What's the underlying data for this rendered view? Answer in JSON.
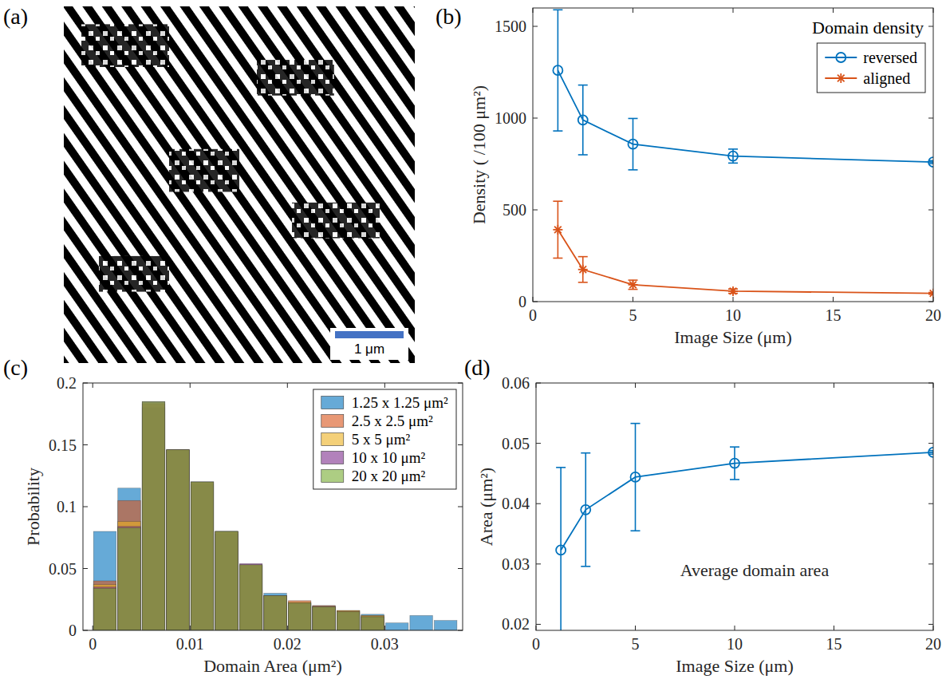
{
  "chart_data": [
    {
      "type": "image",
      "panel_label": "(a)",
      "scale_bar": "1 μm"
    },
    {
      "type": "line",
      "panel_label": "(b)",
      "x_label": "Image Size (μm)",
      "y_label": "Density ( /100 μm²)",
      "x": [
        1.25,
        2.5,
        5,
        10,
        20
      ],
      "series": [
        {
          "name": "reversed",
          "color": "#0072bd",
          "marker": "o",
          "values": [
            1260,
            990,
            858,
            793,
            760
          ],
          "errors": [
            330,
            190,
            140,
            38,
            8
          ]
        },
        {
          "name": "aligned",
          "color": "#d95319",
          "marker": "*",
          "values": [
            392,
            175,
            92,
            57,
            45
          ],
          "errors": [
            155,
            70,
            25,
            12,
            5
          ]
        }
      ],
      "xlim": [
        0,
        20
      ],
      "xticks": [
        0,
        5,
        10,
        15,
        20
      ],
      "ylim": [
        0,
        1600
      ],
      "yticks": [
        0,
        500,
        1000,
        1500
      ],
      "legend": "northeast",
      "legend_title": "Domain density"
    },
    {
      "type": "histogram",
      "panel_label": "(c)",
      "x_label": "Domain Area (μm²)",
      "y_label": "Probability",
      "bins": [
        0,
        0.0025,
        0.005,
        0.0075,
        0.01,
        0.0125,
        0.015,
        0.0175,
        0.02,
        0.0225,
        0.025,
        0.0275,
        0.03,
        0.0325,
        0.035,
        0.0375
      ],
      "series": [
        {
          "name": "1.25 x 1.25 μm²",
          "color": "#0072bd",
          "values": [
            0.08,
            0.115,
            0.18,
            0.146,
            0.118,
            0.078,
            0.052,
            0.03,
            0.022,
            0.02,
            0.016,
            0.013,
            0.006,
            0.012,
            0.008
          ]
        },
        {
          "name": "2.5 x 2.5 μm²",
          "color": "#d95319",
          "values": [
            0.04,
            0.105,
            0.183,
            0.146,
            0.12,
            0.08,
            0.053,
            0.028,
            0.024,
            0.02,
            0.016,
            0.012,
            0,
            0,
            0
          ]
        },
        {
          "name": "5 x 5 μm²",
          "color": "#edb120",
          "values": [
            0.037,
            0.088,
            0.184,
            0.146,
            0.12,
            0.08,
            0.053,
            0.028,
            0.023,
            0.019,
            0.016,
            0.012,
            0,
            0,
            0
          ]
        },
        {
          "name": "10 x 10 μm²",
          "color": "#7e2f8e",
          "values": [
            0.035,
            0.084,
            0.185,
            0.146,
            0.12,
            0.08,
            0.054,
            0.028,
            0.022,
            0.019,
            0.015,
            0.011,
            0,
            0,
            0
          ]
        },
        {
          "name": "20 x 20 μm²",
          "color": "#77ac30",
          "values": [
            0.034,
            0.083,
            0.185,
            0.146,
            0.12,
            0.08,
            0.053,
            0.028,
            0.022,
            0.019,
            0.015,
            0.011,
            0,
            0,
            0
          ]
        }
      ],
      "xlim": [
        -0.001,
        0.038
      ],
      "xticks": [
        0,
        0.01,
        0.02,
        0.03
      ],
      "ylim": [
        0,
        0.2
      ],
      "yticks": [
        0,
        0.05,
        0.1,
        0.15,
        0.2
      ],
      "legend": "northeast"
    },
    {
      "type": "line",
      "panel_label": "(d)",
      "x_label": "Image Size (μm)",
      "y_label": "Area (μm²)",
      "annotations": [
        "Average domain area"
      ],
      "x": [
        1.25,
        2.5,
        5,
        10,
        20
      ],
      "series": [
        {
          "color": "#0072bd",
          "marker": "o",
          "values": [
            0.0323,
            0.039,
            0.0444,
            0.0467,
            0.0485
          ],
          "errors": [
            0.0137,
            0.0094,
            0.0089,
            0.0027,
            0.0003
          ]
        }
      ],
      "xlim": [
        0,
        20
      ],
      "xticks": [
        0,
        5,
        10,
        15,
        20
      ],
      "ylim": [
        0.019,
        0.06
      ],
      "yticks": [
        0.02,
        0.03,
        0.04,
        0.05,
        0.06
      ]
    }
  ]
}
